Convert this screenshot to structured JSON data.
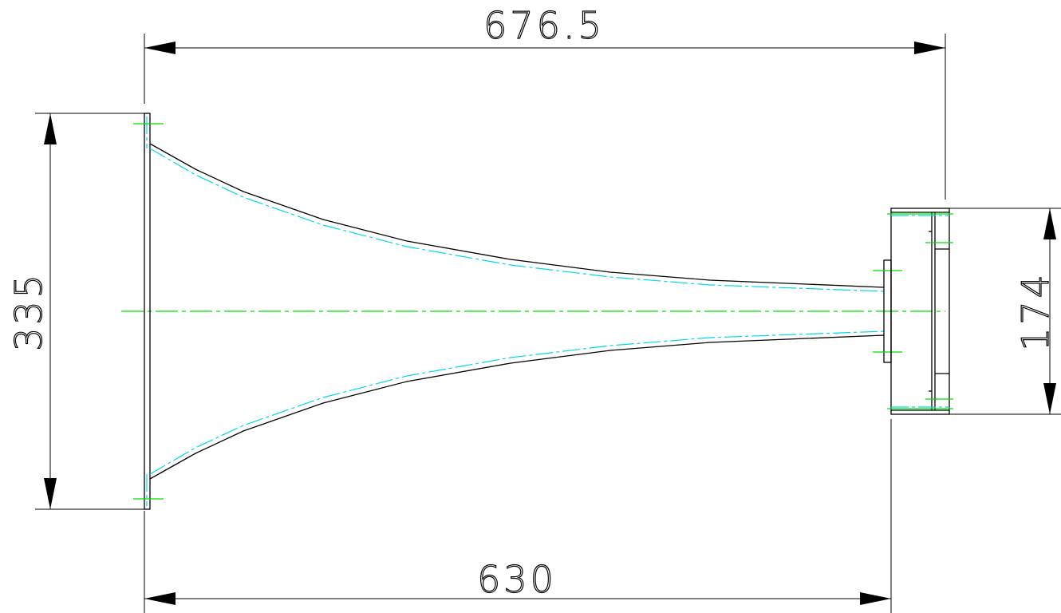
{
  "dimensions": {
    "overall_length": "676.5",
    "horn_length": "630",
    "mouth_height": "335",
    "flange_height": "174"
  },
  "colors": {
    "outline": "#000000",
    "inner_profile": "#00d8e8",
    "centerline": "#00e000"
  }
}
